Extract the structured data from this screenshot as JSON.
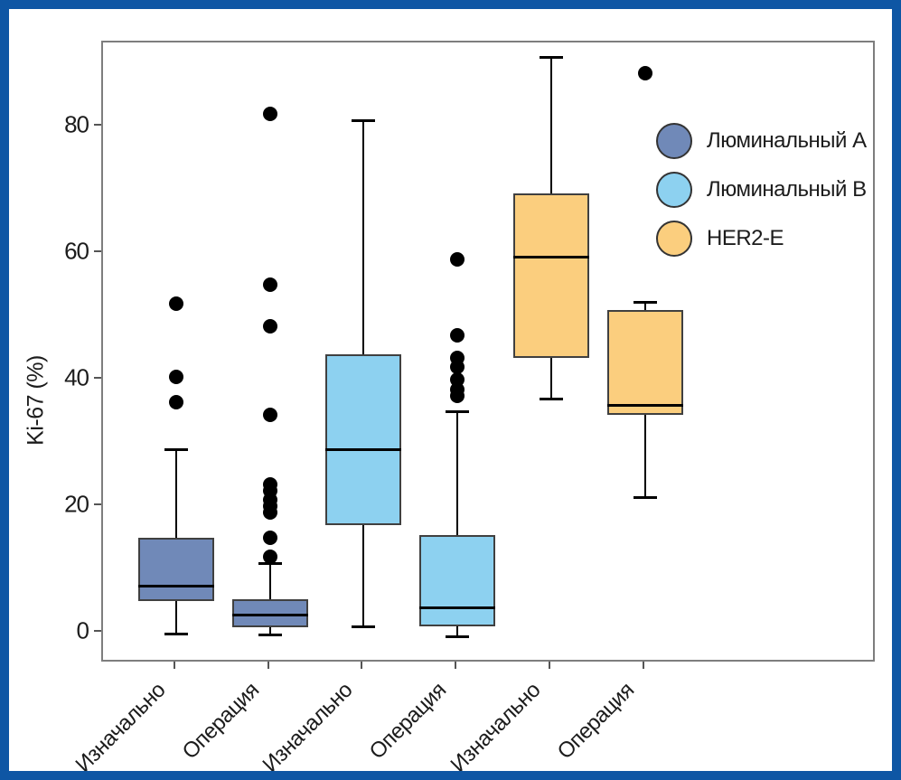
{
  "frame": {
    "border_color": "#0E56A4",
    "background": "#FFFFFF"
  },
  "chart_data": {
    "type": "boxplot",
    "ylabel": "Ki-67 (%)",
    "ylim": [
      -5,
      98
    ],
    "yticks": [
      0,
      20,
      40,
      60,
      80
    ],
    "grid": "off",
    "legend_position": "upper-right-inside",
    "categories": [
      "Изначально",
      "Операция",
      "Изначально",
      "Операция",
      "Изначально",
      "Операция"
    ],
    "legend": [
      {
        "label": "Люминальный A",
        "color": "#7089B8"
      },
      {
        "label": "Люминальный B",
        "color": "#8DD1F0"
      },
      {
        "label": "HER2-E",
        "color": "#FBCE7E"
      }
    ],
    "boxes": [
      {
        "group": "Люминальный A",
        "timepoint": "Изначально",
        "color": "#7089B8",
        "whisker_low": -0.2,
        "q1": 5,
        "median": 7.5,
        "q3": 15,
        "whisker_high": 29,
        "outliers": [
          36.5,
          40.5,
          52
        ]
      },
      {
        "group": "Люминальный A",
        "timepoint": "Операция",
        "color": "#7089B8",
        "whisker_low": -0.3,
        "q1": 0.8,
        "median": 2.8,
        "q3": 5.3,
        "whisker_high": 11,
        "outliers": [
          12,
          15,
          19,
          20,
          21,
          22.5,
          23.5,
          34.5,
          48.5,
          55,
          82
        ]
      },
      {
        "group": "Люминальный B",
        "timepoint": "Изначально",
        "color": "#8DD1F0",
        "whisker_low": 1,
        "q1": 17,
        "median": 29,
        "q3": 44,
        "whisker_high": 81,
        "outliers": []
      },
      {
        "group": "Люминальный B",
        "timepoint": "Операция",
        "color": "#8DD1F0",
        "whisker_low": -0.5,
        "q1": 1,
        "median": 4,
        "q3": 15.5,
        "whisker_high": 35,
        "outliers": [
          37.5,
          38.5,
          40,
          42,
          43.5,
          47,
          59
        ]
      },
      {
        "group": "HER2-E",
        "timepoint": "Изначально",
        "color": "#FBCE7E",
        "whisker_low": 37,
        "q1": 43.5,
        "median": 59.5,
        "q3": 69.5,
        "whisker_high": 91,
        "outliers": []
      },
      {
        "group": "HER2-E",
        "timepoint": "Операция",
        "color": "#FBCE7E",
        "whisker_low": 21.5,
        "q1": 34.5,
        "median": 36,
        "q3": 51,
        "whisker_high": 52.3,
        "outliers": [
          88.5
        ]
      }
    ]
  }
}
